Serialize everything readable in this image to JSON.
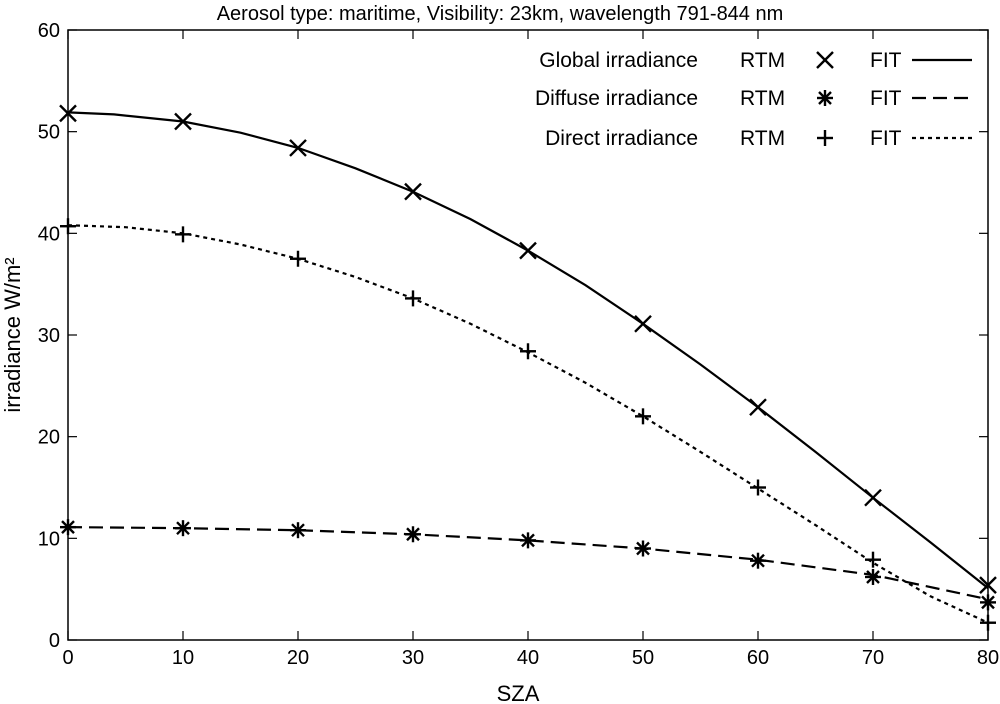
{
  "chart_data": {
    "type": "line",
    "title": "Aerosol type: maritime, Visibility: 23km,  wavelength 791-844 nm",
    "xlabel": "SZA",
    "ylabel": "irradiance W/m²",
    "xlim": [
      0,
      80
    ],
    "ylim": [
      0,
      60
    ],
    "xticks": [
      0,
      10,
      20,
      30,
      40,
      50,
      60,
      70,
      80
    ],
    "yticks": [
      0,
      10,
      20,
      30,
      40,
      50,
      60
    ],
    "grid": false,
    "legend_position": "top-right",
    "series": [
      {
        "name": "Global irradiance",
        "rtm_label": "RTM",
        "fit_label": "FIT",
        "marker": "x",
        "line_style": "solid",
        "rtm": [
          [
            0,
            51.8
          ],
          [
            10,
            51.0
          ],
          [
            20,
            48.4
          ],
          [
            30,
            44.1
          ],
          [
            40,
            38.3
          ],
          [
            50,
            31.1
          ],
          [
            60,
            22.9
          ],
          [
            70,
            14.0
          ],
          [
            80,
            5.4
          ]
        ],
        "fit": [
          [
            0,
            51.9
          ],
          [
            4,
            51.7
          ],
          [
            10,
            51.0
          ],
          [
            15,
            49.9
          ],
          [
            20,
            48.4
          ],
          [
            25,
            46.4
          ],
          [
            30,
            44.1
          ],
          [
            35,
            41.4
          ],
          [
            40,
            38.3
          ],
          [
            45,
            34.9
          ],
          [
            50,
            31.1
          ],
          [
            55,
            27.1
          ],
          [
            60,
            22.9
          ],
          [
            65,
            18.5
          ],
          [
            70,
            14.0
          ],
          [
            75,
            9.6
          ],
          [
            80,
            5.1
          ]
        ]
      },
      {
        "name": "Diffuse irradiance",
        "rtm_label": "RTM",
        "fit_label": "FIT",
        "marker": "asterisk",
        "line_style": "dashed",
        "rtm": [
          [
            0,
            11.1
          ],
          [
            10,
            11.0
          ],
          [
            20,
            10.8
          ],
          [
            30,
            10.4
          ],
          [
            40,
            9.8
          ],
          [
            50,
            9.0
          ],
          [
            60,
            7.8
          ],
          [
            70,
            6.2
          ],
          [
            80,
            3.7
          ]
        ],
        "fit": [
          [
            0,
            11.1
          ],
          [
            10,
            11.0
          ],
          [
            20,
            10.8
          ],
          [
            30,
            10.4
          ],
          [
            40,
            9.8
          ],
          [
            50,
            9.0
          ],
          [
            60,
            7.9
          ],
          [
            70,
            6.4
          ],
          [
            80,
            4.0
          ]
        ]
      },
      {
        "name": "Direct irradiance",
        "rtm_label": "RTM",
        "fit_label": "FIT",
        "marker": "plus",
        "line_style": "dotted",
        "rtm": [
          [
            0,
            40.7
          ],
          [
            10,
            39.9
          ],
          [
            20,
            37.5
          ],
          [
            30,
            33.6
          ],
          [
            40,
            28.4
          ],
          [
            50,
            22.0
          ],
          [
            60,
            15.0
          ],
          [
            70,
            7.9
          ],
          [
            80,
            1.7
          ]
        ],
        "fit": [
          [
            0,
            40.8
          ],
          [
            5,
            40.6
          ],
          [
            10,
            40.0
          ],
          [
            15,
            38.9
          ],
          [
            20,
            37.5
          ],
          [
            25,
            35.7
          ],
          [
            30,
            33.6
          ],
          [
            35,
            31.1
          ],
          [
            40,
            28.3
          ],
          [
            45,
            25.3
          ],
          [
            50,
            22.0
          ],
          [
            55,
            18.5
          ],
          [
            60,
            14.9
          ],
          [
            65,
            11.3
          ],
          [
            70,
            7.6
          ],
          [
            75,
            4.3
          ],
          [
            80,
            1.7
          ]
        ]
      }
    ]
  }
}
